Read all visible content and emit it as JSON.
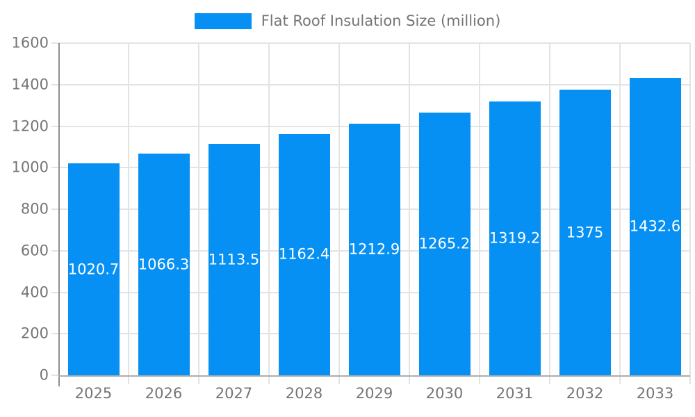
{
  "chart_data": {
    "type": "bar",
    "title": "Flat Roof Insulation Size (million)",
    "categories": [
      "2025",
      "2026",
      "2027",
      "2028",
      "2029",
      "2030",
      "2031",
      "2032",
      "2033"
    ],
    "values": [
      1020.7,
      1066.3,
      1113.5,
      1162.4,
      1212.9,
      1265.2,
      1319.2,
      1375,
      1432.6
    ],
    "bar_labels": [
      "1020.7",
      "1066.3",
      "1113.5",
      "1162.4",
      "1212.9",
      "1265.2",
      "1319.2",
      "1375",
      "1432.6"
    ],
    "xlabel": "",
    "ylabel": "",
    "ylim": [
      0,
      1600
    ],
    "ytick_step": 200,
    "ytick_labels": [
      "0",
      "200",
      "400",
      "600",
      "800",
      "1000",
      "1200",
      "1400",
      "1600"
    ],
    "grid": true,
    "legend_position": "top",
    "colors": {
      "bar": "#0790F3",
      "bar_label": "#ffffff",
      "axis_label": "#757575",
      "grid": "#e3e3e3",
      "y_axis_line": "#8f8f8f",
      "x_axis_line": "#adadad",
      "background": "#ffffff"
    }
  }
}
